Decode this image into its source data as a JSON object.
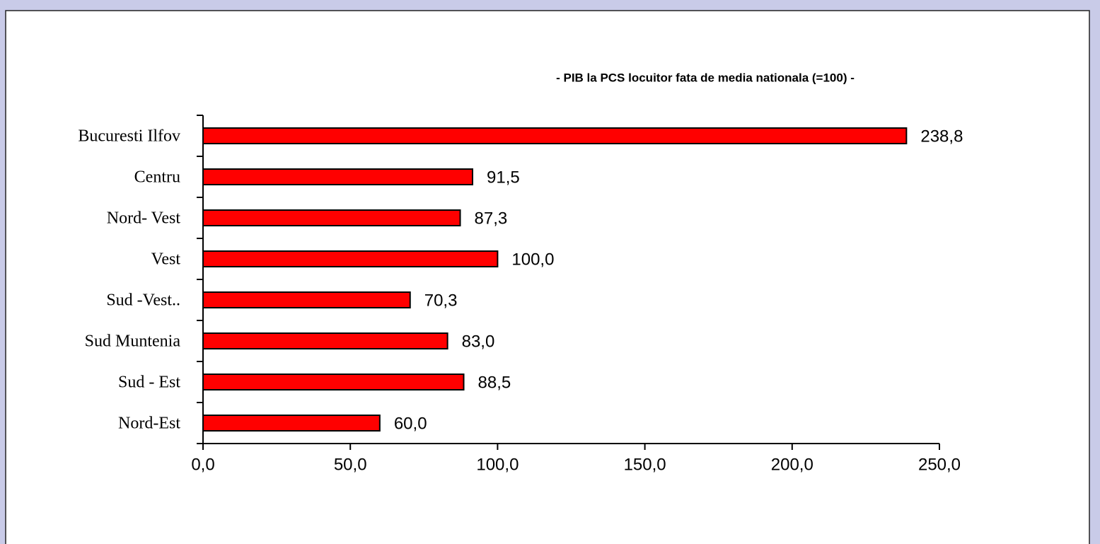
{
  "chart_data": {
    "type": "bar",
    "orientation": "horizontal",
    "title": "- PIB la PCS locuitor fata de media nationala (=100) -",
    "categories": [
      "Bucuresti Ilfov",
      "Centru",
      "Nord- Vest",
      "Vest",
      "Sud -Vest..",
      "Sud Muntenia",
      "Sud - Est",
      "Nord-Est"
    ],
    "values": [
      238.8,
      91.5,
      87.3,
      100.0,
      70.3,
      83.0,
      88.5,
      60.0
    ],
    "value_labels": [
      "238,8",
      "91,5",
      "87,3",
      "100,0",
      "70,3",
      "83,0",
      "88,5",
      "60,0"
    ],
    "color": "#ff0000",
    "xlim": [
      0,
      250
    ],
    "xticks": [
      {
        "value": 0,
        "label": "0,0"
      },
      {
        "value": 50,
        "label": "50,0"
      },
      {
        "value": 100,
        "label": "100,0"
      },
      {
        "value": 150,
        "label": "150,0"
      },
      {
        "value": 200,
        "label": "200,0"
      },
      {
        "value": 250,
        "label": "250,0"
      }
    ],
    "grid": false
  }
}
